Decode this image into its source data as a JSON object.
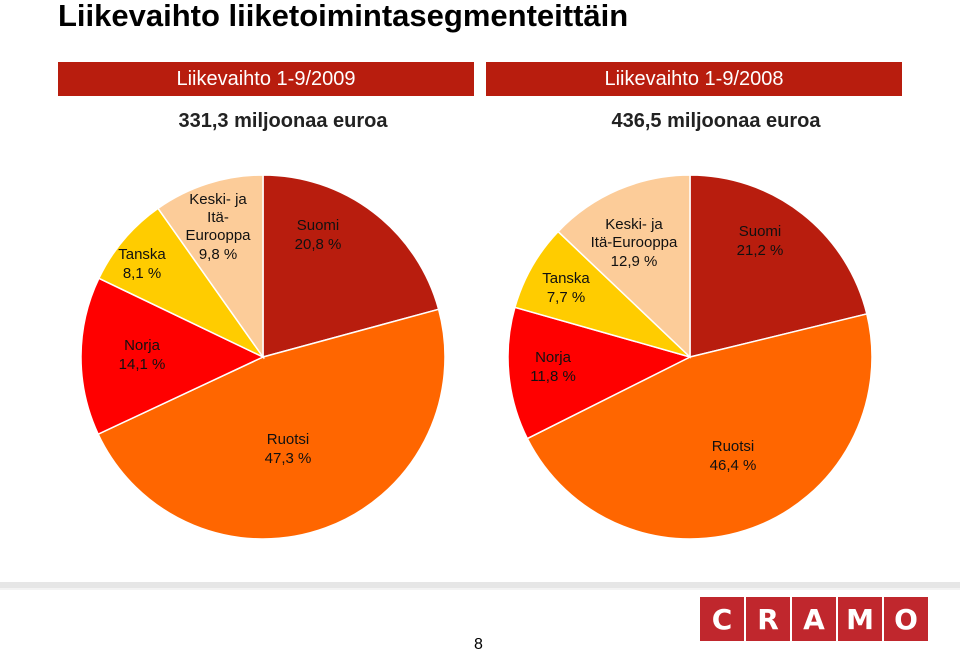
{
  "title": "Liikevaihto liiketoimintasegmenteittäin",
  "colors": {
    "band": "#b81d0e",
    "Suomi": "#b81d0e",
    "Ruotsi": "#ff6600",
    "Norja": "#ff0000",
    "Tanska": "#ffcc00",
    "Keski- ja Itä-Eurooppa": "#fccc99"
  },
  "page_number": "8",
  "logo": {
    "letters": [
      "C",
      "R",
      "A",
      "M",
      "O"
    ]
  },
  "chart_data": [
    {
      "type": "pie",
      "title": "Liikevaihto 1-9/2009",
      "subtitle": "331,3 miljoonaa euroa",
      "slices": [
        {
          "name": "Suomi",
          "value": 20.8,
          "label": "20,8 %",
          "name_lines": [
            "Suomi"
          ]
        },
        {
          "name": "Ruotsi",
          "value": 47.3,
          "label": "47,3 %",
          "name_lines": [
            "Ruotsi"
          ]
        },
        {
          "name": "Norja",
          "value": 14.1,
          "label": "14,1 %",
          "name_lines": [
            "Norja"
          ]
        },
        {
          "name": "Tanska",
          "value": 8.1,
          "label": "8,1 %",
          "name_lines": [
            "Tanska"
          ]
        },
        {
          "name": "Keski- ja Itä-Eurooppa",
          "value": 9.8,
          "label": "9,8 %",
          "name_lines": [
            "Keski- ja",
            "Itä-",
            "Eurooppa"
          ]
        }
      ]
    },
    {
      "type": "pie",
      "title": "Liikevaihto 1-9/2008",
      "subtitle": "436,5 miljoonaa euroa",
      "slices": [
        {
          "name": "Suomi",
          "value": 21.2,
          "label": "21,2 %",
          "name_lines": [
            "Suomi"
          ]
        },
        {
          "name": "Ruotsi",
          "value": 46.4,
          "label": "46,4 %",
          "name_lines": [
            "Ruotsi"
          ]
        },
        {
          "name": "Norja",
          "value": 11.8,
          "label": "11,8 %",
          "name_lines": [
            "Norja"
          ]
        },
        {
          "name": "Tanska",
          "value": 7.7,
          "label": "7,7 %",
          "name_lines": [
            "Tanska"
          ]
        },
        {
          "name": "Keski- ja Itä-Eurooppa",
          "value": 12.9,
          "label": "12,9 %",
          "name_lines": [
            "Keski- ja",
            "Itä-Eurooppa"
          ]
        }
      ]
    }
  ]
}
